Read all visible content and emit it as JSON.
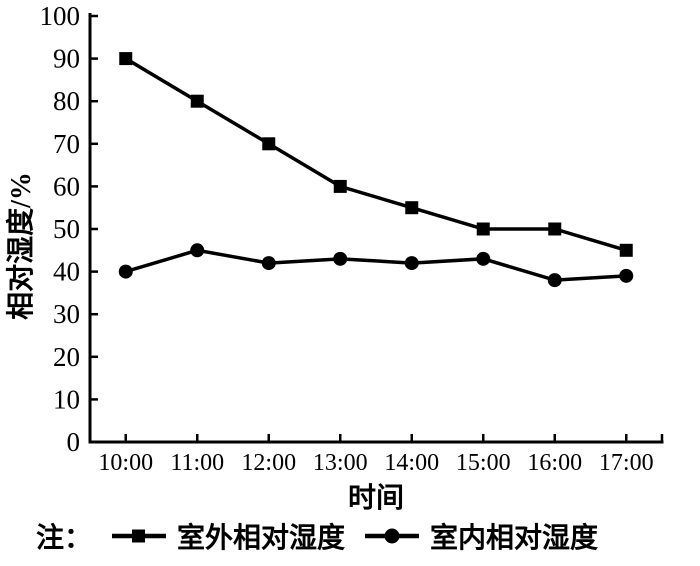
{
  "figure": {
    "background_color": "#ffffff",
    "ink_color": "#000000"
  },
  "chart_data": {
    "type": "line",
    "title": "",
    "xlabel": "时间",
    "ylabel": "相对湿度/%",
    "x_categories": [
      "10:00",
      "11:00",
      "12:00",
      "13:00",
      "14:00",
      "15:00",
      "16:00",
      "17:00"
    ],
    "y_ticks": [
      0,
      10,
      20,
      30,
      40,
      50,
      60,
      70,
      80,
      90,
      100
    ],
    "ylim": [
      0,
      100
    ],
    "grid": false,
    "legend": {
      "position": "bottom",
      "note_prefix": "注："
    },
    "series": [
      {
        "name": "室外相对湿度",
        "marker": "square",
        "color": "#000000",
        "values": [
          90,
          80,
          70,
          60,
          55,
          50,
          50,
          45
        ]
      },
      {
        "name": "室内相对湿度",
        "marker": "circle",
        "color": "#000000",
        "values": [
          40,
          45,
          42,
          43,
          42,
          43,
          38,
          39
        ]
      }
    ]
  }
}
